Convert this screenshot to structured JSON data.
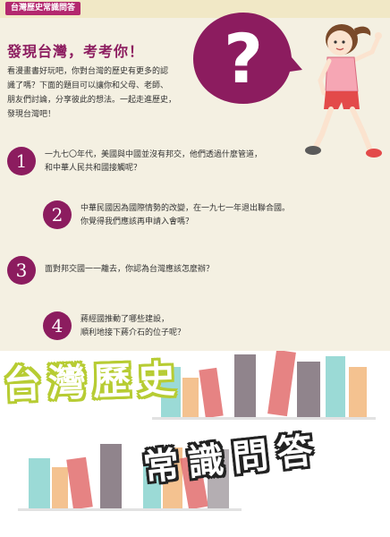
{
  "page": {
    "series_tag": "台灣歷史常識問答",
    "heading": "發現台灣，考考你！",
    "intro_lines": [
      "看漫畫書好玩吧，你對台灣的歷史有更多的認",
      "識了嗎？下面的題目可以讓你和父母、老師、",
      "朋友們討論，分享彼此的想法。一起走進歷史，",
      "發現台灣吧！"
    ],
    "qmark": "?",
    "questions": [
      {
        "number": "1",
        "lines": [
          "一九七〇年代，美國與中國並沒有邦交，他們透過什麼管道，",
          "和中華人民共和國接觸呢？"
        ]
      },
      {
        "number": "2",
        "lines": [
          "中華民國因為國際情勢的改變，在一九七一年退出聯合國。",
          "你覺得我們應該再申請入會嗎？"
        ]
      },
      {
        "number": "3",
        "lines": [
          "面對邦交國一一離去，你認為台灣應該怎麼辦？"
        ]
      },
      {
        "number": "4",
        "lines": [
          "蔣經國推動了哪些建設，",
          "順利地接下蔣介石的位子呢？"
        ]
      }
    ]
  },
  "banner": {
    "title_line1": "台灣歷史",
    "title_line2": "常識問答"
  },
  "colors": {
    "accent_magenta": "#8c1c5f",
    "title_green": "#b7cc33",
    "book_colors": [
      "#8ad3cf",
      "#e26d6d",
      "#f2b77d",
      "#7c6f78",
      "#a7a0a4"
    ]
  }
}
